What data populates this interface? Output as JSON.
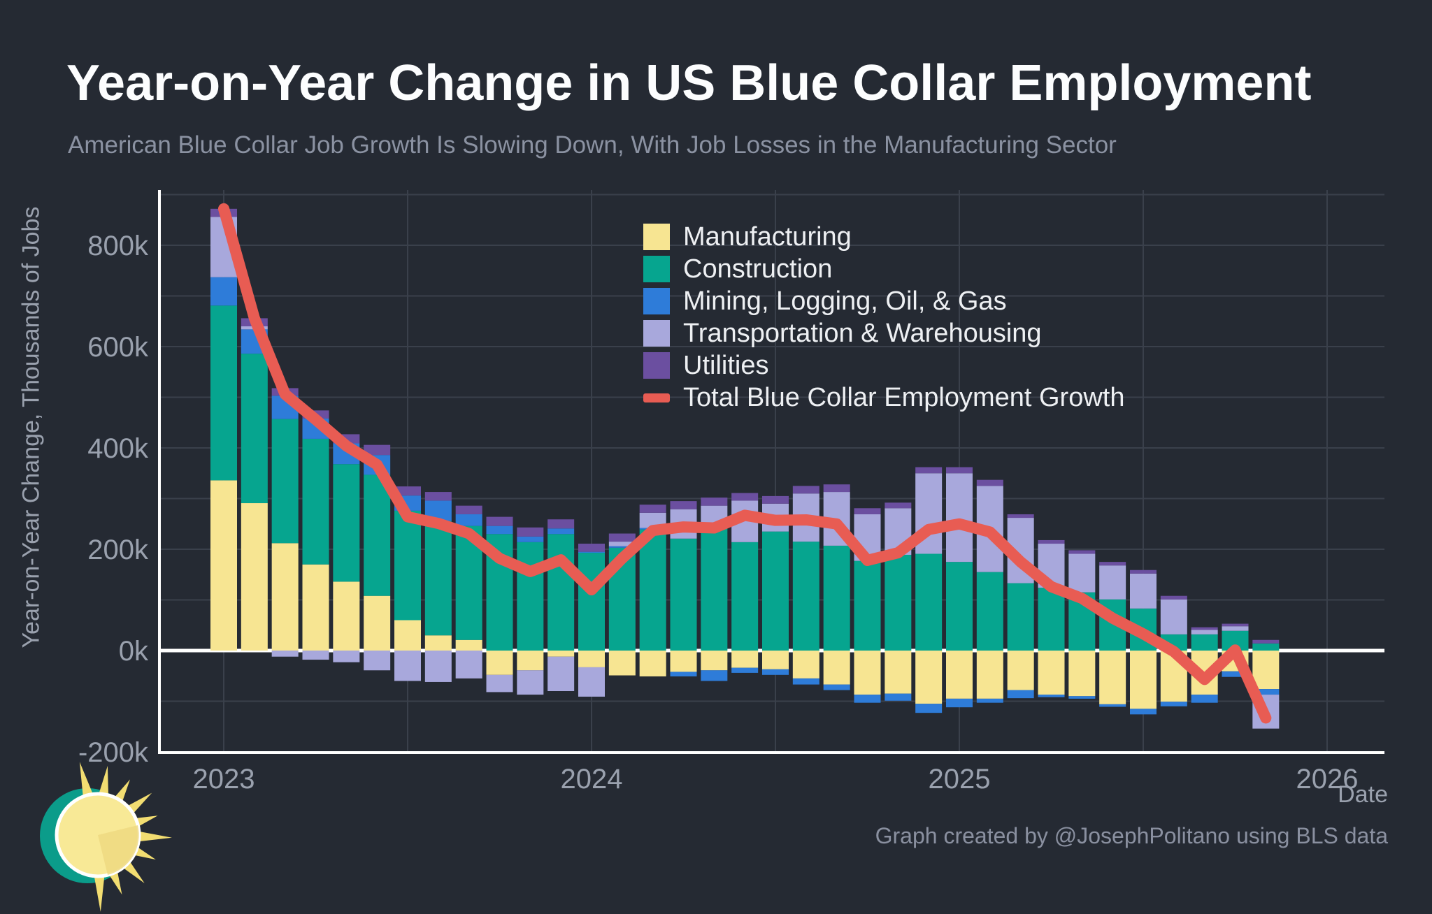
{
  "header": {
    "title": "Year-on-Year Change in US Blue Collar Employment",
    "subtitle": "American Blue Collar Job Growth Is Slowing Down, With Job Losses in the Manufacturing Sector"
  },
  "footer": {
    "attribution": "Graph created by @JosephPolitano using BLS data"
  },
  "axes": {
    "y_label": "Year-on-Year Change, Thousands of Jobs",
    "x_label": "Date",
    "y_ticks": [
      {
        "value": 800,
        "label": "800k"
      },
      {
        "value": 600,
        "label": "600k"
      },
      {
        "value": 400,
        "label": "400k"
      },
      {
        "value": 200,
        "label": "200k"
      },
      {
        "value": 0,
        "label": "0k"
      },
      {
        "value": -200,
        "label": "-200k"
      }
    ],
    "x_ticks": [
      {
        "month_index": 0,
        "label": "2023"
      },
      {
        "month_index": 12,
        "label": "2024"
      },
      {
        "month_index": 24,
        "label": "2025"
      },
      {
        "month_index": 36,
        "label": "2026"
      }
    ]
  },
  "colors": {
    "background": "#252a33",
    "manufacturing": "#f7e592",
    "construction": "#06a58f",
    "mining": "#2e7cd9",
    "transportation": "#a8a8dc",
    "utilities": "#6b4fa0",
    "total_line": "#e85c53",
    "grid": "#3a404b",
    "axis_line": "#ffffff",
    "tick_text": "#9aa1ae"
  },
  "legend": [
    {
      "label": "Manufacturing",
      "color_key": "manufacturing",
      "swatch": "square"
    },
    {
      "label": "Construction",
      "color_key": "construction",
      "swatch": "square"
    },
    {
      "label": "Mining, Logging, Oil, & Gas",
      "color_key": "mining",
      "swatch": "square"
    },
    {
      "label": "Transportation & Warehousing",
      "color_key": "transportation",
      "swatch": "square"
    },
    {
      "label": "Utilities",
      "color_key": "utilities",
      "swatch": "square"
    },
    {
      "label": "Total Blue Collar Employment Growth",
      "color_key": "total_line",
      "swatch": "line"
    }
  ],
  "chart_data": {
    "type": "bar",
    "subtype": "stacked-bar-with-line",
    "units": "thousands of jobs",
    "x": [
      "2023-01",
      "2023-02",
      "2023-03",
      "2023-04",
      "2023-05",
      "2023-06",
      "2023-07",
      "2023-08",
      "2023-09",
      "2023-10",
      "2023-11",
      "2023-12",
      "2024-01",
      "2024-02",
      "2024-03",
      "2024-04",
      "2024-05",
      "2024-06",
      "2024-07",
      "2024-08",
      "2024-09",
      "2024-10",
      "2024-11",
      "2024-12",
      "2025-01",
      "2025-02",
      "2025-03",
      "2025-04",
      "2025-05",
      "2025-06",
      "2025-07",
      "2025-08",
      "2025-09",
      "2025-10",
      "2025-11"
    ],
    "series": [
      {
        "name": "Manufacturing",
        "color_key": "manufacturing",
        "values": [
          336,
          291,
          212,
          170,
          136,
          108,
          60,
          30,
          21,
          -48,
          -39,
          -12,
          -33,
          -49,
          -51,
          -42,
          -39,
          -34,
          -37,
          -55,
          -67,
          -87,
          -85,
          -105,
          -95,
          -95,
          -78,
          -87,
          -90,
          -106,
          -115,
          -101,
          -87,
          -41,
          -76
        ]
      },
      {
        "name": "Construction",
        "color_key": "construction",
        "values": [
          345,
          295,
          245,
          248,
          232,
          239,
          216,
          226,
          225,
          230,
          214,
          230,
          193,
          203,
          239,
          221,
          246,
          214,
          235,
          215,
          207,
          177,
          189,
          191,
          175,
          155,
          133,
          124,
          115,
          101,
          83,
          32,
          32,
          39,
          14
        ]
      },
      {
        "name": "Mining, Logging, Oil, & Gas",
        "color_key": "mining",
        "values": [
          56,
          48,
          46,
          40,
          41,
          39,
          30,
          40,
          23,
          16,
          11,
          11,
          2,
          3,
          3,
          -9,
          -21,
          -10,
          -11,
          -12,
          -11,
          -16,
          -14,
          -18,
          -17,
          -8,
          -16,
          -5,
          -5,
          -5,
          -11,
          -9,
          -16,
          -11,
          -11
        ]
      },
      {
        "name": "Transportation & Warehousing",
        "color_key": "transportation",
        "values": [
          119,
          6,
          -12,
          -18,
          -23,
          -39,
          -60,
          -62,
          -55,
          -34,
          -48,
          -68,
          -58,
          9,
          30,
          58,
          40,
          82,
          55,
          95,
          106,
          92,
          92,
          159,
          175,
          170,
          129,
          87,
          76,
          67,
          69,
          69,
          9,
          9,
          -67
        ]
      },
      {
        "name": "Utilities",
        "color_key": "utilities",
        "values": [
          16,
          16,
          15,
          16,
          18,
          20,
          18,
          17,
          17,
          18,
          18,
          18,
          16,
          16,
          16,
          16,
          16,
          15,
          15,
          15,
          15,
          12,
          11,
          12,
          12,
          12,
          7,
          7,
          7,
          7,
          7,
          7,
          5,
          5,
          7
        ]
      }
    ],
    "line": {
      "name": "Total Blue Collar Employment Growth",
      "color_key": "total_line",
      "values": [
        872,
        656,
        506,
        456,
        404,
        367,
        264,
        251,
        231,
        182,
        156,
        179,
        120,
        182,
        237,
        244,
        242,
        267,
        257,
        258,
        250,
        178,
        193,
        239,
        250,
        234,
        175,
        126,
        103,
        64,
        33,
        -2,
        -57,
        1,
        -133
      ]
    },
    "title": "Year-on-Year Change in US Blue Collar Employment",
    "xlabel": "Date",
    "ylabel": "Year-on-Year Change, Thousands of Jobs",
    "ylim": [
      -200,
      910
    ],
    "grid": true,
    "legend_position": "upper-center-right"
  }
}
